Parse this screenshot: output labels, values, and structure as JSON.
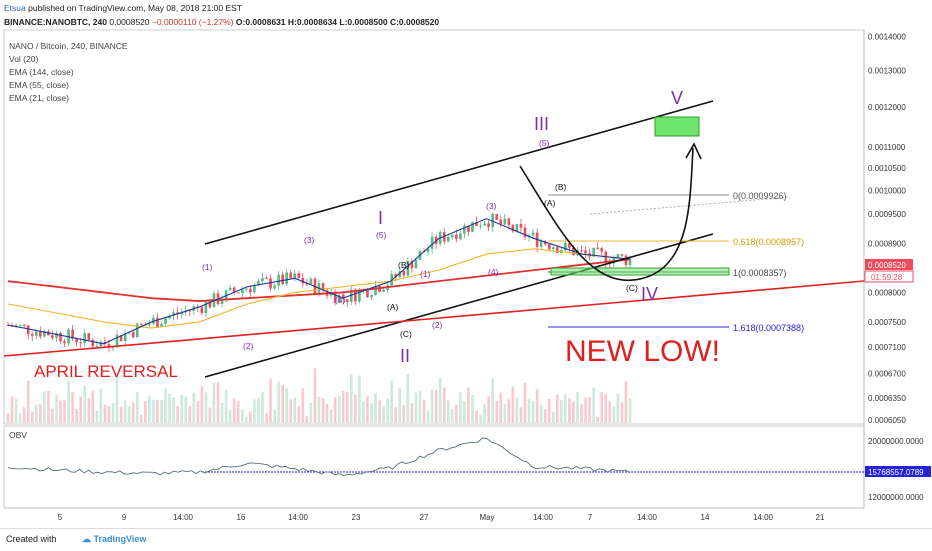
{
  "header": {
    "user": "Etsua",
    "published": "published on TradingView.com, May 08, 2018 21:00 EST",
    "symbol_line": "BINANCE:NANOBTC, 240",
    "last": "0.0008520",
    "change": "−0.0000110 (−1.27%)",
    "ohlc": "O:0.0008631 H:0.0008634 L:0.0008500 C:0.0008520"
  },
  "legend": {
    "title": "NANO / Bitcoin, 240, BINANCE",
    "items": [
      "Vol (20)",
      "EMA (144, close)",
      "EMA (55, close)",
      "EMA (21, close)"
    ]
  },
  "obv_label": "OBV",
  "annotations": {
    "april_reversal": "APRIL REVERSAL",
    "new_low": "NEW LOW!",
    "fib_0": "0(0.0009926)",
    "fib_618": "0.618(0.0008957)",
    "fib_1": "1(0.0008357)",
    "fib_1618": "1.618(0.0007388)",
    "wave_I": "I",
    "wave_II": "II",
    "wave_III": "III",
    "wave_IV": "IV",
    "wave_V": "V",
    "sub_labels": [
      "(1)",
      "(2)",
      "(3)",
      "(4)",
      "(5)",
      "(A)",
      "(B)",
      "(C)",
      "(1)",
      "(2)",
      "(3)",
      "(4)",
      "(5)",
      "(A)",
      "(B)",
      "(C)"
    ]
  },
  "colors": {
    "up": "#53b987",
    "down": "#eb4d5c",
    "ema144": "#e23030",
    "ema55": "#f0b429",
    "ema21": "#1f3a93",
    "wave": "#7b2fa6",
    "obv": "#546e7a",
    "obv_level": "#2424d6",
    "target_box": "#6ee66e"
  },
  "price_axis": {
    "ticks": [
      "0.0014000",
      "0.0013000",
      "0.0012000",
      "0.0011000",
      "0.0010500",
      "0.0010000",
      "0.0009500",
      "0.0008900",
      "0.0008520",
      "0.0008000",
      "0.0007500",
      "0.0007100",
      "0.0006700",
      "0.0006350",
      "0.0006050"
    ],
    "last_price": "0.0008520",
    "countdown": "01:59:28"
  },
  "obv_axis": {
    "ticks": [
      "20000000.0000",
      "12000000.0000"
    ],
    "level": "15768557.0789"
  },
  "time_axis": {
    "ticks": [
      "5",
      "9",
      "14:00",
      "16",
      "14:00",
      "23",
      "27",
      "May",
      "14:00",
      "7",
      "14:00",
      "14",
      "14:00",
      "21"
    ]
  },
  "chart_data": [
    {
      "type": "line",
      "title": "NANO / Bitcoin, 240, BINANCE",
      "scale": "log",
      "ylim": [
        0.0006,
        0.00142
      ],
      "series": [
        {
          "name": "EMA (144, close)",
          "values": [
            0.00082,
            0.00081,
            0.0008,
            0.00079,
            0.000785,
            0.00079,
            0.000795,
            0.0008,
            0.00081,
            0.00082,
            0.00083,
            0.00084,
            0.00085,
            0.00086
          ]
        },
        {
          "name": "EMA (55, close)",
          "values": [
            0.00078,
            0.000765,
            0.00075,
            0.00074,
            0.00075,
            0.00078,
            0.0008,
            0.00081,
            0.00082,
            0.00084,
            0.00087,
            0.00088,
            0.00087,
            0.00086
          ]
        },
        {
          "name": "EMA (21, close)",
          "values": [
            0.000745,
            0.00073,
            0.000715,
            0.00075,
            0.000775,
            0.00081,
            0.000825,
            0.00079,
            0.00082,
            0.0009,
            0.00094,
            0.0009,
            0.00087,
            0.00086
          ]
        }
      ],
      "fib_levels": [
        0.0009926,
        0.0008957,
        0.0008357,
        0.0007388
      ],
      "last_close": 0.000852
    },
    {
      "type": "line",
      "title": "OBV",
      "ylim": [
        11000000,
        22500000
      ],
      "series": [
        {
          "name": "OBV",
          "values": [
            16800000,
            16300000,
            16000000,
            15800000,
            16000000,
            17300000,
            16500000,
            15500000,
            16600000,
            19200000,
            21000000,
            16800000,
            16500000,
            16000000
          ]
        }
      ],
      "level": 15768557.0789
    }
  ]
}
